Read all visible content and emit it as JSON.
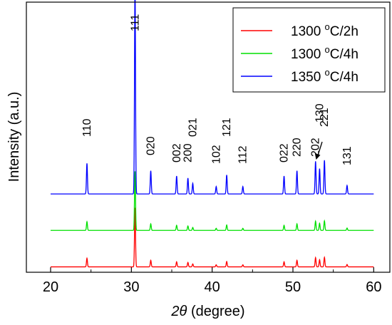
{
  "chart_data": {
    "type": "line",
    "xlabel_prefix": "2θ",
    "xlabel_suffix": "(degree)",
    "ylabel": "Intensity (a.u.)",
    "xlim": [
      17,
      62
    ],
    "ylim": [
      0,
      1
    ],
    "x_ticks": [
      20,
      30,
      40,
      50,
      60
    ],
    "grid": false,
    "legend_position": "top-right",
    "series": [
      {
        "name_temp": "1300",
        "name_unit": "C/2h",
        "color": "#ff0000",
        "baseline": 0.02,
        "scale": 0.025
      },
      {
        "name_temp": "1300",
        "name_unit": "C/4h",
        "color": "#00e000",
        "baseline": 0.155,
        "scale": 0.025
      },
      {
        "name_temp": "1350",
        "name_unit": "C/4h",
        "color": "#0000ff",
        "baseline": 0.29,
        "scale": 0.56
      }
    ],
    "peaks": [
      {
        "x": 24.5,
        "label": "110",
        "h": 0.145
      },
      {
        "x": 30.45,
        "label": "111",
        "h": 1.0
      },
      {
        "x": 32.4,
        "label": "020",
        "h": 0.11
      },
      {
        "x": 35.6,
        "label": "002",
        "h": 0.085
      },
      {
        "x": 37.0,
        "label": "200",
        "h": 0.075
      },
      {
        "x": 37.6,
        "label": "021",
        "h": 0.05
      },
      {
        "x": 40.5,
        "label": "102",
        "h": 0.035
      },
      {
        "x": 41.8,
        "label": "121",
        "h": 0.09
      },
      {
        "x": 43.8,
        "label": "112",
        "h": 0.035
      },
      {
        "x": 48.9,
        "label": "022",
        "h": 0.085
      },
      {
        "x": 50.5,
        "label": "220",
        "h": 0.11
      },
      {
        "x": 52.8,
        "label": "202",
        "h": 0.155
      },
      {
        "x": 53.3,
        "label": "130",
        "h": 0.12
      },
      {
        "x": 53.9,
        "label": "221",
        "h": 0.16
      },
      {
        "x": 56.7,
        "label": "131",
        "h": 0.04
      }
    ],
    "x_range": [
      20,
      60
    ],
    "degree_mark": "o"
  }
}
